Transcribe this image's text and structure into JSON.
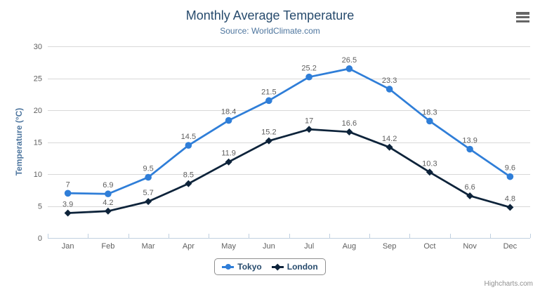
{
  "chart": {
    "title": "Monthly Average Temperature",
    "subtitle": "Source: WorldClimate.com"
  },
  "credits": "Highcharts.com",
  "colors": {
    "title": "#274b6d",
    "subtitle": "#4d759e",
    "axis_label": "#606060",
    "data_label": "#606060",
    "grid_line": "#d8d8d8",
    "axis_line": "#c0d0e0",
    "legend_border": "#909090",
    "credits_text": "#909090",
    "menu_icon": "#666666"
  },
  "chart_data": {
    "type": "line",
    "title": "Monthly Average Temperature",
    "subtitle": "Source: WorldClimate.com",
    "categories": [
      "Jan",
      "Feb",
      "Mar",
      "Apr",
      "May",
      "Jun",
      "Jul",
      "Aug",
      "Sep",
      "Oct",
      "Nov",
      "Dec"
    ],
    "series": [
      {
        "name": "Tokyo",
        "color": "#2f7ed8",
        "marker": "circle",
        "values": [
          7,
          6.9,
          9.5,
          14.5,
          18.4,
          21.5,
          25.2,
          26.5,
          23.3,
          18.3,
          13.9,
          9.6
        ]
      },
      {
        "name": "London",
        "color": "#0d233a",
        "marker": "diamond",
        "values": [
          3.9,
          4.2,
          5.7,
          8.5,
          11.9,
          15.2,
          17,
          16.6,
          14.2,
          10.3,
          6.6,
          4.8
        ]
      }
    ],
    "xlabel": "",
    "ylabel": "Temperature (°C)",
    "ylim": [
      0,
      30
    ],
    "ytick_interval": 5,
    "yticks": [
      0,
      5,
      10,
      15,
      20,
      25,
      30
    ],
    "grid": true,
    "data_labels": true,
    "legend_position": "bottom-center"
  }
}
